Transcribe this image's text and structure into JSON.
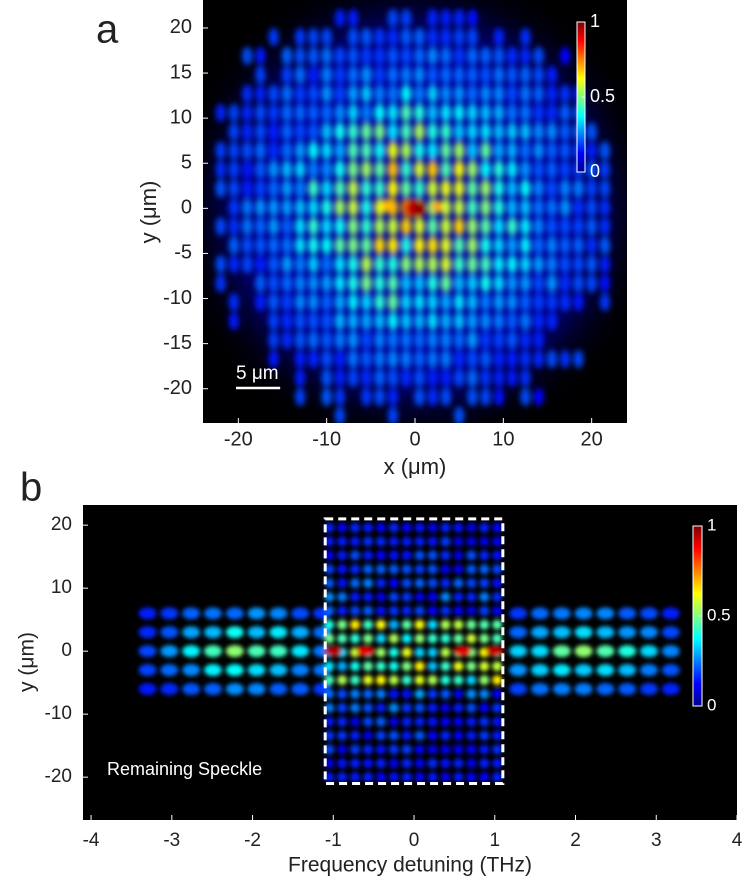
{
  "chart_data": [
    {
      "type": "heatmap",
      "panel_label": "a",
      "xlabel": "x (μm)",
      "ylabel": "y (μm)",
      "xlim": [
        -24,
        24
      ],
      "ylim": [
        -23.8,
        23.1
      ],
      "xticks": [
        -20,
        -10,
        0,
        10,
        20
      ],
      "yticks": [
        -20,
        -15,
        -10,
        -5,
        0,
        5,
        10,
        15,
        20
      ],
      "clim": [
        0,
        1
      ],
      "cticks": [
        0,
        0.5,
        1
      ],
      "colormap": "jet",
      "scale_bar": {
        "label": "5 μm",
        "length": 5
      }
    },
    {
      "type": "heatmap",
      "panel_label": "b",
      "xlabel": "Frequency detuning (THz)",
      "ylabel": "y (μm)",
      "xlim": [
        -4.1,
        4
      ],
      "ylim": [
        -26.8,
        23.2
      ],
      "xticks": [
        -4,
        -3,
        -2,
        -1,
        0,
        1,
        2,
        3,
        4
      ],
      "yticks": [
        -20,
        -10,
        0,
        10,
        20
      ],
      "clim": [
        0,
        1
      ],
      "cticks": [
        0,
        0.5,
        1
      ],
      "colormap": "jet",
      "annotation": "Remaining Speckle",
      "box": {
        "x": [
          -1.1,
          1.1
        ],
        "y": [
          -21,
          21
        ]
      }
    }
  ]
}
